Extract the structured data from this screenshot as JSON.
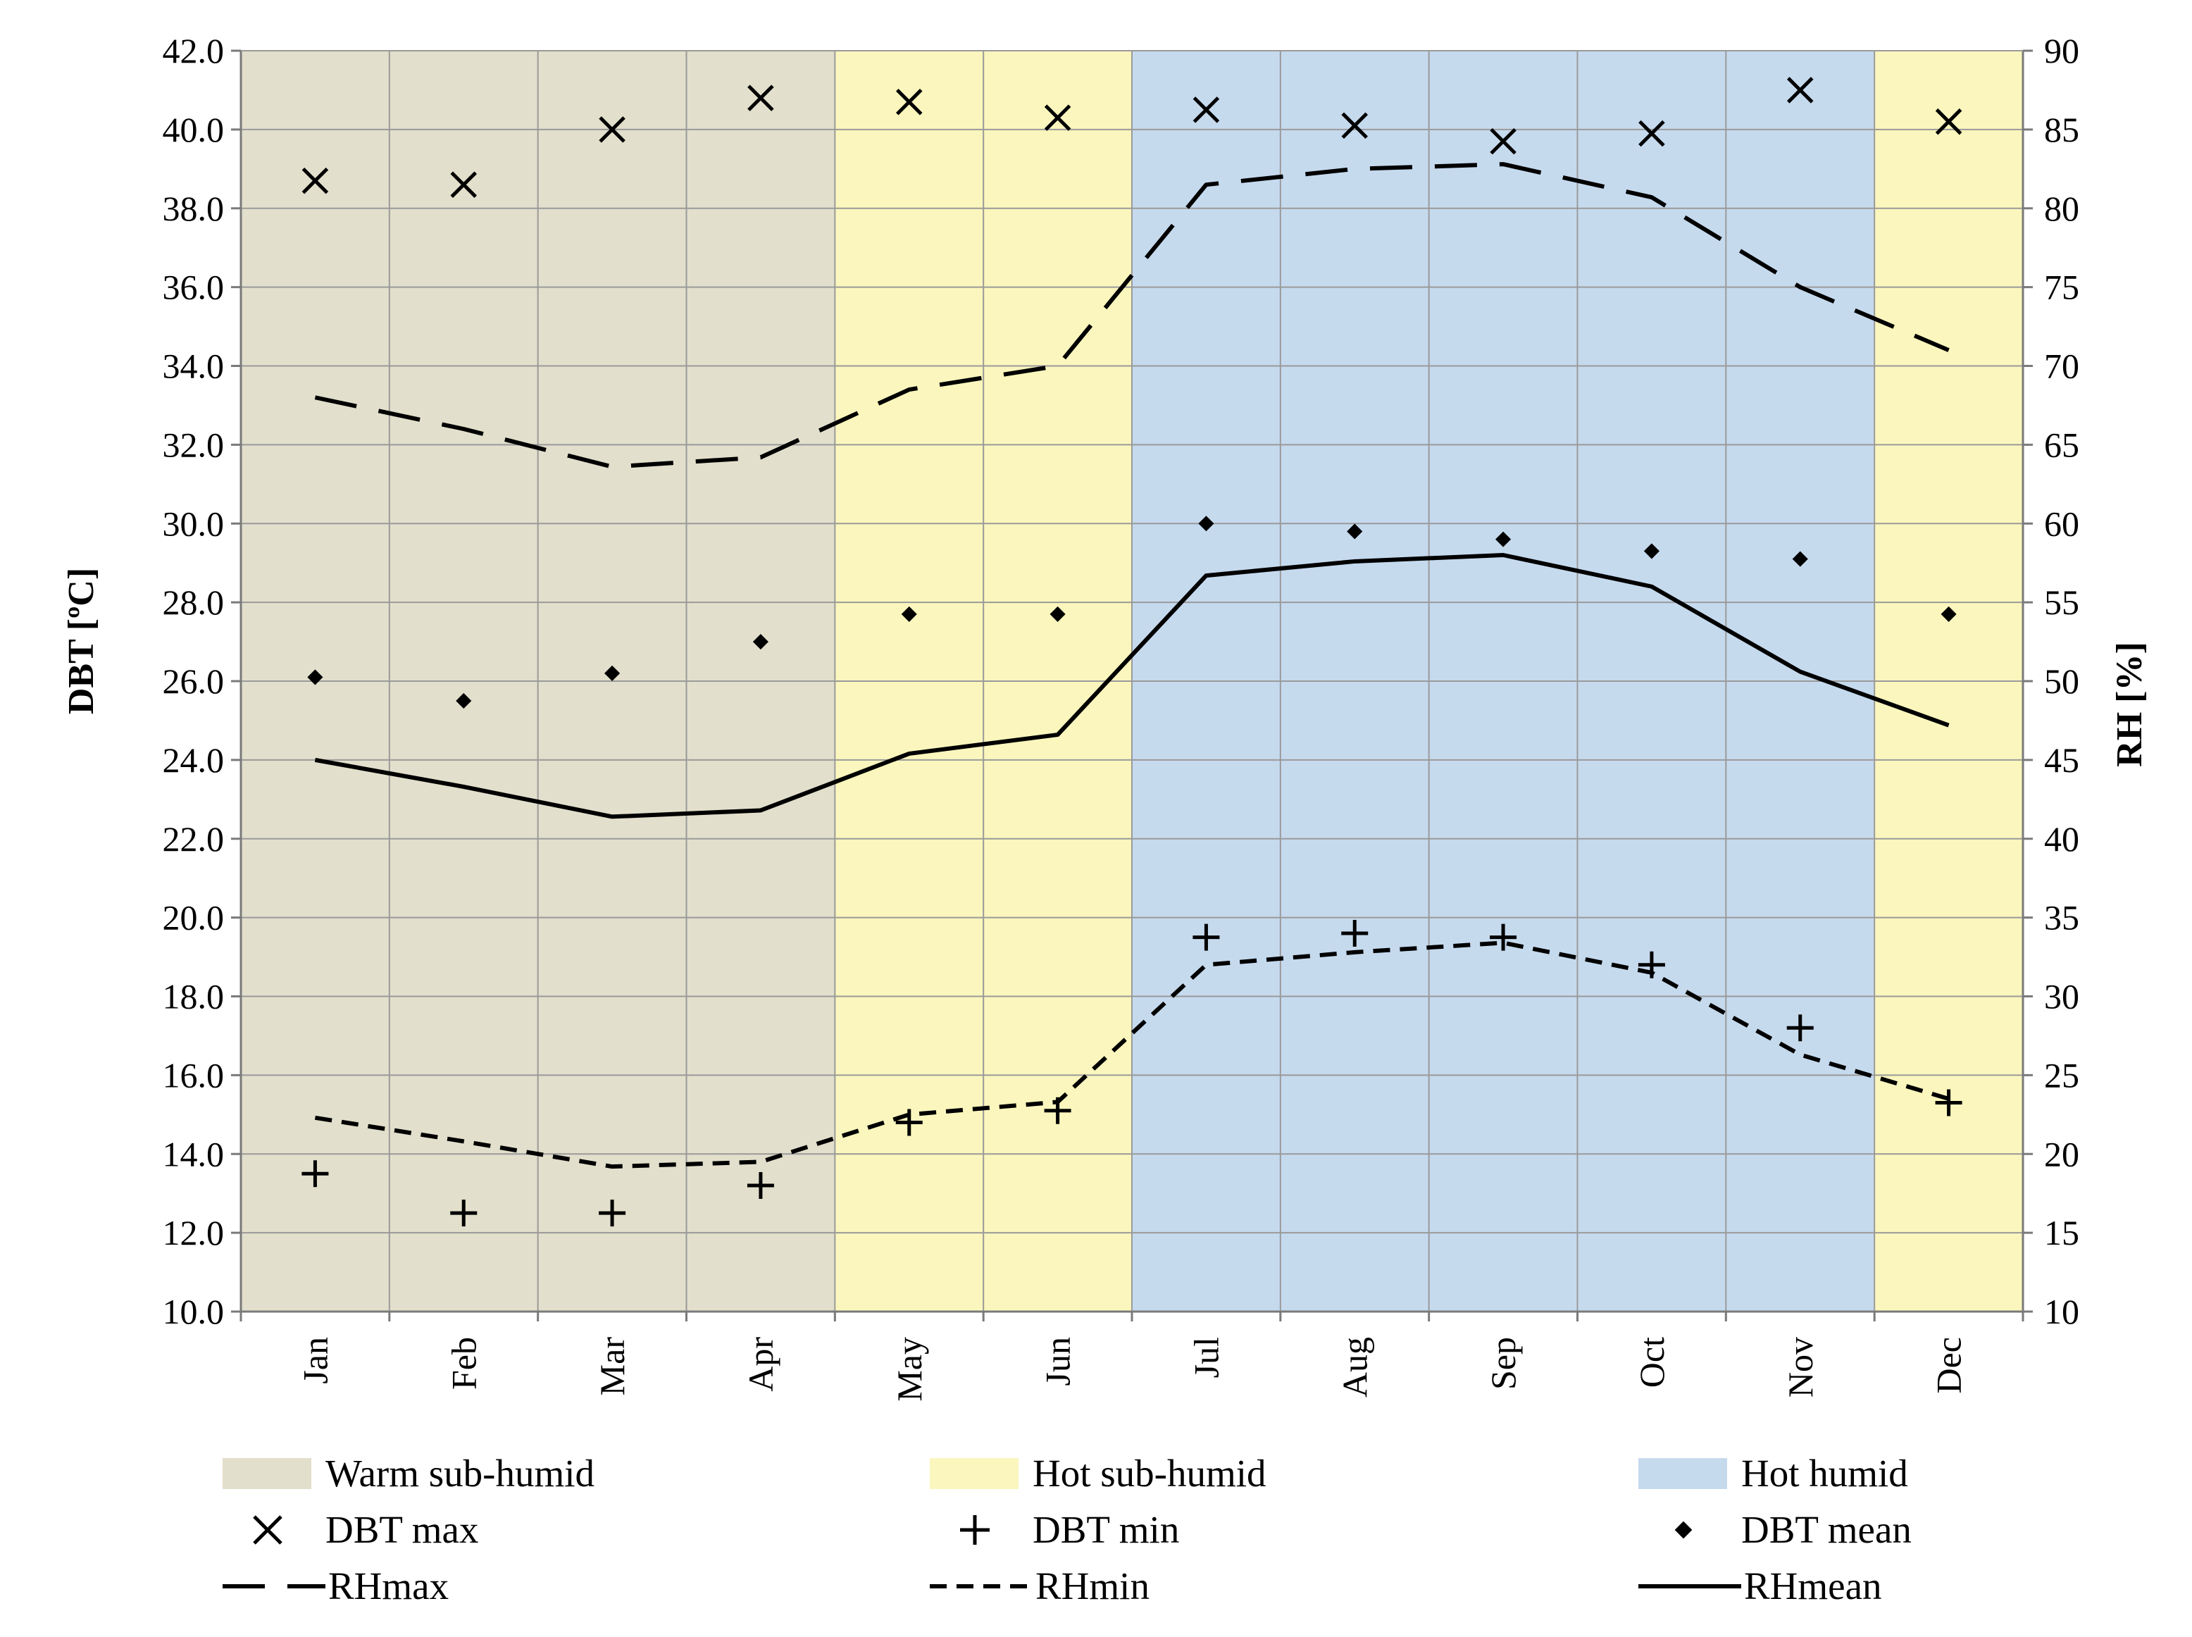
{
  "chart_data": {
    "type": "line",
    "months": [
      "Jan",
      "Feb",
      "Mar",
      "Apr",
      "May",
      "Jun",
      "Jul",
      "Aug",
      "Sep",
      "Oct",
      "Nov",
      "Dec"
    ],
    "y_left": {
      "label": "DBT [ºC]",
      "min": 10.0,
      "max": 42.0,
      "step": 2.0,
      "ticks": [
        "10.0",
        "12.0",
        "14.0",
        "16.0",
        "18.0",
        "20.0",
        "22.0",
        "24.0",
        "26.0",
        "28.0",
        "30.0",
        "32.0",
        "34.0",
        "36.0",
        "38.0",
        "40.0",
        "42.0"
      ]
    },
    "y_right": {
      "label": "RH [%]",
      "min": 10,
      "max": 90,
      "step": 5,
      "ticks": [
        "10",
        "15",
        "20",
        "25",
        "30",
        "35",
        "40",
        "45",
        "50",
        "55",
        "60",
        "65",
        "70",
        "75",
        "80",
        "85",
        "90"
      ]
    },
    "seasons": [
      {
        "name": "Warm sub-humid",
        "color": "#e2dfcc",
        "start": 0,
        "end": 4
      },
      {
        "name": "Hot sub-humid",
        "color": "#faf6bd",
        "start": 4,
        "end": 6
      },
      {
        "name": "Hot humid",
        "color": "#c6daee",
        "start": 6,
        "end": 11
      },
      {
        "name": "Hot sub-humid",
        "color": "#faf6bd",
        "start": 11,
        "end": 12
      }
    ],
    "series": [
      {
        "name": "DBT max",
        "axis": "left",
        "marker": "x",
        "values": [
          38.7,
          38.6,
          40.0,
          40.8,
          40.7,
          40.3,
          40.5,
          40.1,
          39.7,
          39.9,
          41.0,
          40.2
        ]
      },
      {
        "name": "DBT min",
        "axis": "left",
        "marker": "plus",
        "values": [
          13.5,
          12.5,
          12.5,
          13.2,
          14.8,
          15.1,
          19.5,
          19.6,
          19.5,
          18.8,
          17.2,
          15.3
        ]
      },
      {
        "name": "DBT mean",
        "axis": "left",
        "marker": "diamond",
        "values": [
          26.1,
          25.5,
          26.2,
          27.0,
          27.7,
          27.7,
          30.0,
          29.8,
          29.6,
          29.3,
          29.1,
          27.7
        ]
      },
      {
        "name": "RHmax",
        "axis": "right",
        "line": "longdash",
        "values": [
          68.0,
          66.0,
          63.6,
          64.2,
          68.5,
          70.0,
          81.5,
          82.5,
          82.8,
          80.7,
          75.0,
          71.0
        ]
      },
      {
        "name": "RHmin",
        "axis": "right",
        "line": "shortdash",
        "values": [
          22.3,
          20.8,
          19.2,
          19.5,
          22.5,
          23.3,
          32.0,
          32.8,
          33.4,
          31.5,
          26.3,
          23.5
        ]
      },
      {
        "name": "RHmean",
        "axis": "right",
        "line": "solid",
        "values": [
          45.0,
          43.3,
          41.4,
          41.8,
          45.4,
          46.6,
          56.7,
          57.6,
          58.0,
          56.0,
          50.6,
          47.2
        ]
      }
    ],
    "legend": {
      "rows": [
        [
          "Warm sub-humid",
          "Hot sub-humid",
          "Hot humid"
        ],
        [
          "DBT max",
          "DBT min",
          "DBT mean"
        ],
        [
          "RHmax",
          "RHmin",
          "RHmean"
        ]
      ],
      "placement": "bottom"
    },
    "grid": true
  }
}
